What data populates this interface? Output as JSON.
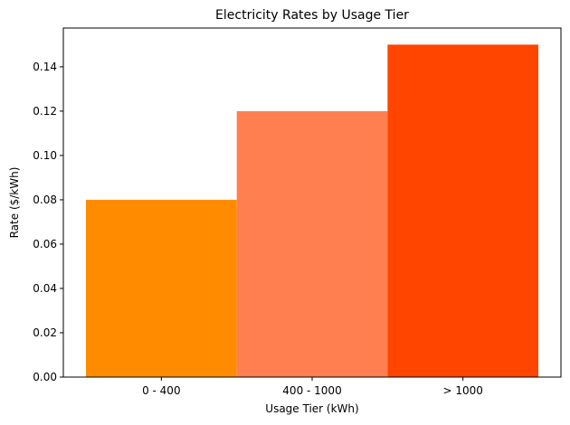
{
  "chart_data": {
    "type": "bar",
    "title": "Electricity Rates by Usage Tier",
    "xlabel": "Usage Tier (kWh)",
    "ylabel": "Rate ($/kWh)",
    "categories": [
      "0 - 400",
      "400 - 1000",
      "> 1000"
    ],
    "values": [
      0.08,
      0.12,
      0.15
    ],
    "colors": [
      "#ff8c00",
      "#ff7f50",
      "#ff4500"
    ],
    "ylim": [
      0,
      0.1575
    ],
    "yticks": [
      0.0,
      0.02,
      0.04,
      0.06,
      0.08,
      0.1,
      0.12,
      0.14
    ],
    "ytick_labels": [
      "0.00",
      "0.02",
      "0.04",
      "0.06",
      "0.08",
      "0.10",
      "0.12",
      "0.14"
    ],
    "grid": false,
    "legend": "none"
  }
}
